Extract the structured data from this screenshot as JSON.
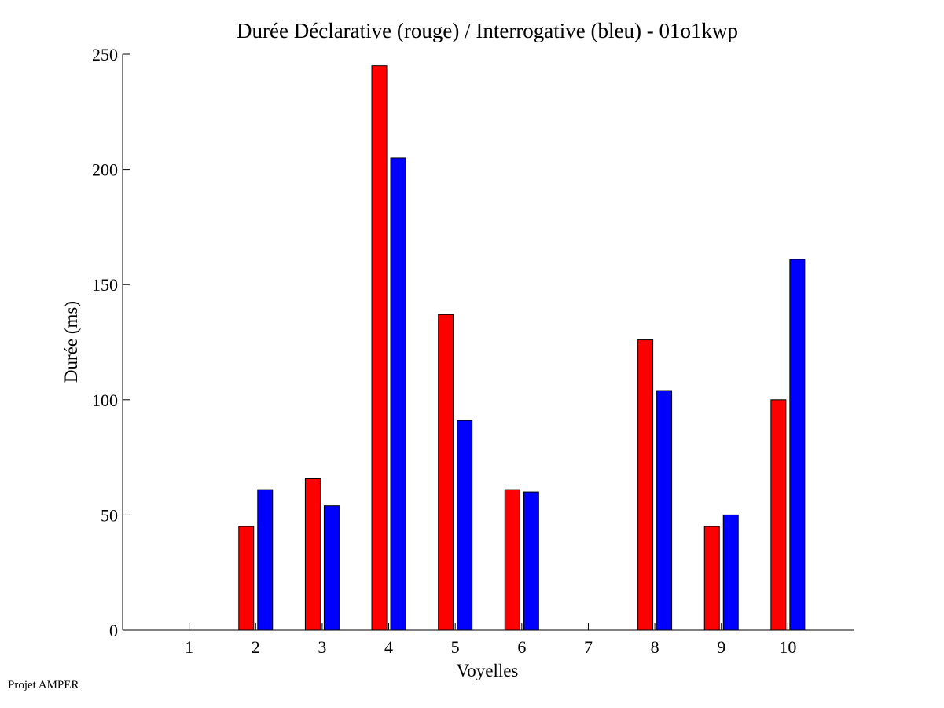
{
  "footer": {
    "text": "Projet AMPER"
  },
  "chart_data": {
    "type": "bar",
    "title": "Durée Déclarative (rouge) / Interrogative (bleu) - 01o1kwp",
    "xlabel": "Voyelles",
    "ylabel": "Durée (ms)",
    "categories": [
      "1",
      "2",
      "3",
      "4",
      "5",
      "6",
      "7",
      "8",
      "9",
      "10"
    ],
    "ylim": [
      0,
      250
    ],
    "yticks": [
      0,
      50,
      100,
      150,
      200,
      250
    ],
    "xlim": [
      0,
      11
    ],
    "grid": false,
    "legend": "none",
    "series": [
      {
        "color": "#ff0000",
        "values": [
          0,
          45,
          66,
          245,
          137,
          61,
          0,
          126,
          45,
          100
        ]
      },
      {
        "color": "#0000ff",
        "values": [
          0,
          61,
          54,
          205,
          91,
          60,
          0,
          104,
          50,
          161
        ]
      }
    ]
  }
}
